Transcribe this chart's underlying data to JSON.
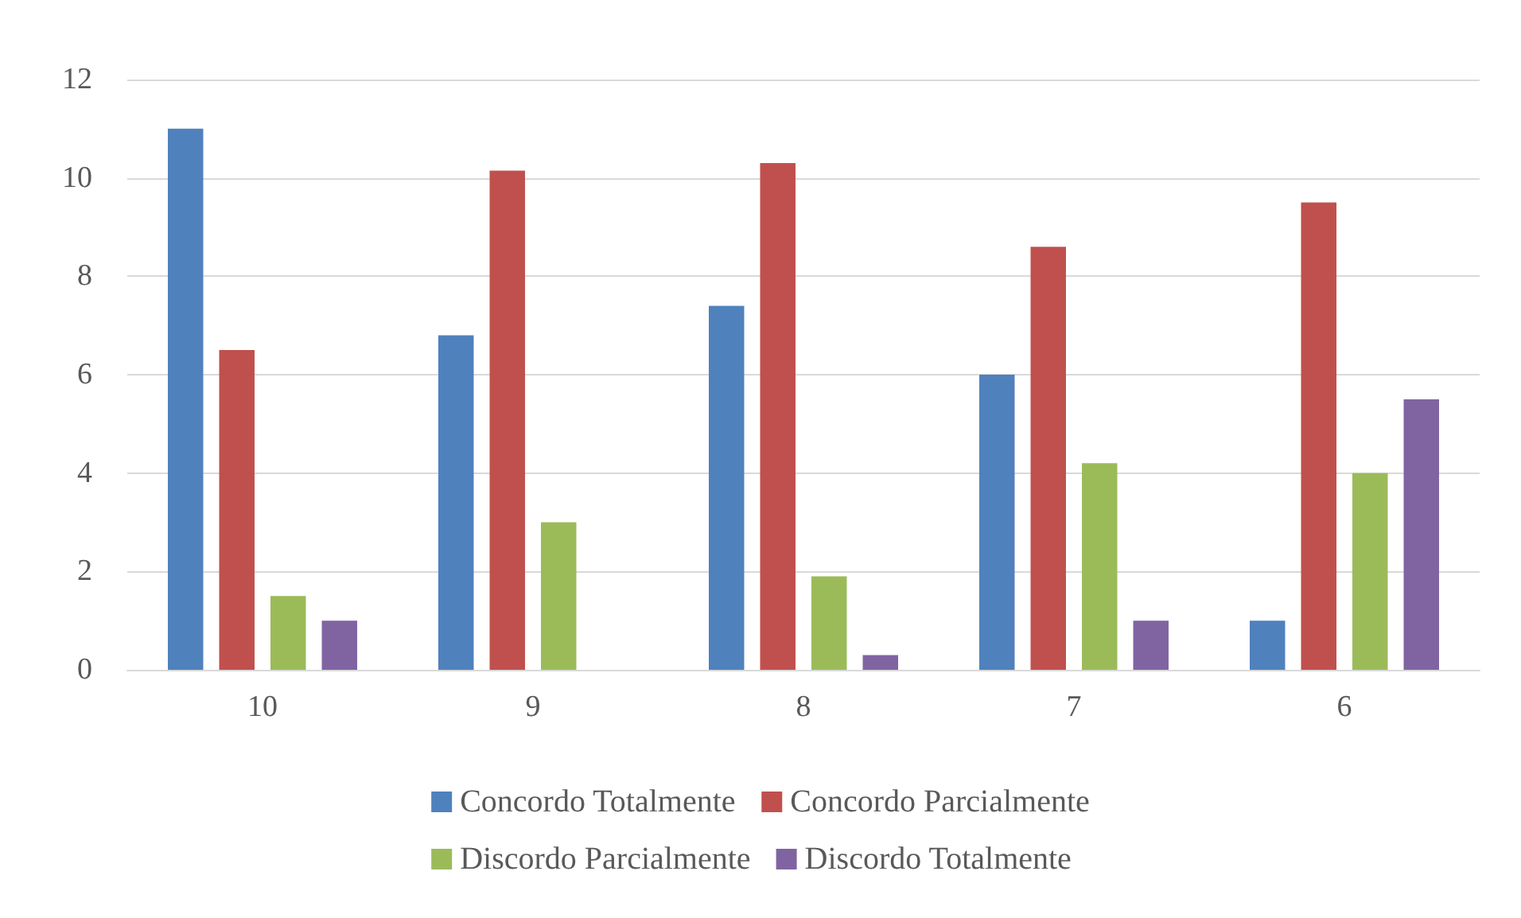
{
  "chart_data": {
    "type": "bar",
    "categories": [
      "10",
      "9",
      "8",
      "7",
      "6"
    ],
    "series": [
      {
        "name": "Concordo Totalmente",
        "color": "#4f81bd",
        "values": [
          11,
          6.8,
          7.4,
          6,
          1
        ]
      },
      {
        "name": "Concordo Parcialmente",
        "color": "#c0504d",
        "values": [
          6.5,
          10.15,
          10.3,
          8.6,
          9.5
        ]
      },
      {
        "name": "Discordo Parcialmente",
        "color": "#9bbb59",
        "values": [
          1.5,
          3,
          1.9,
          4.2,
          4
        ]
      },
      {
        "name": "Discordo Totalmente",
        "color": "#8064a2",
        "values": [
          1,
          0,
          0.3,
          1,
          5.5
        ]
      }
    ],
    "ylim": [
      0,
      12
    ],
    "yticks": [
      0,
      2,
      4,
      6,
      8,
      10,
      12
    ],
    "grid": "y",
    "legend": "bottom"
  }
}
